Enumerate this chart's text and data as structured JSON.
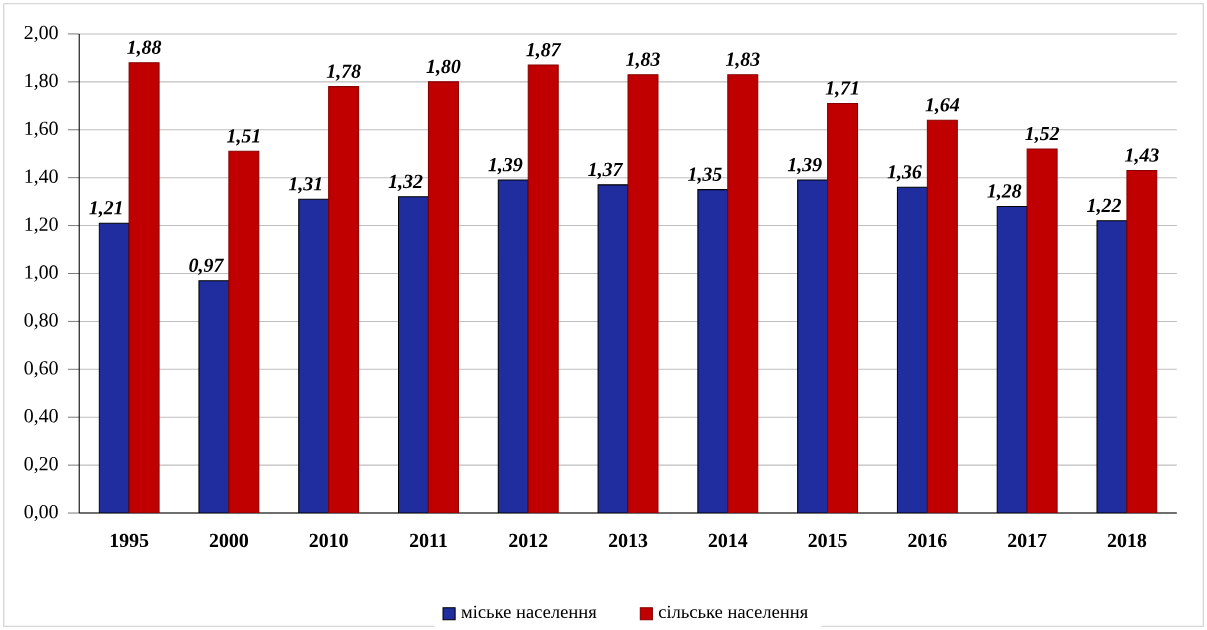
{
  "chart_data": {
    "type": "bar",
    "categories": [
      "1995",
      "2000",
      "2010",
      "2011",
      "2012",
      "2013",
      "2014",
      "2015",
      "2016",
      "2017",
      "2018"
    ],
    "series": [
      {
        "name": "міське населення",
        "color": "#1f2d9e",
        "values": [
          1.21,
          0.97,
          1.31,
          1.32,
          1.39,
          1.37,
          1.35,
          1.39,
          1.36,
          1.28,
          1.22
        ],
        "value_labels": [
          "1,21",
          "0,97",
          "1,31",
          "1,32",
          "1,39",
          "1,37",
          "1,35",
          "1,39",
          "1,36",
          "1,28",
          "1,22"
        ]
      },
      {
        "name": "сільське населення",
        "color": "#c00000",
        "values": [
          1.88,
          1.51,
          1.78,
          1.8,
          1.87,
          1.83,
          1.83,
          1.71,
          1.64,
          1.52,
          1.43
        ],
        "value_labels": [
          "1,88",
          "1,51",
          "1,78",
          "1,80",
          "1,87",
          "1,83",
          "1,83",
          "1,71",
          "1,64",
          "1,52",
          "1,43"
        ]
      }
    ],
    "ylim": [
      0,
      2
    ],
    "yticks": [
      {
        "value": 0,
        "label": "0,00"
      },
      {
        "value": 0.2,
        "label": "0,20"
      },
      {
        "value": 0.4,
        "label": "0,40"
      },
      {
        "value": 0.6,
        "label": "0,60"
      },
      {
        "value": 0.8,
        "label": "0,80"
      },
      {
        "value": 1.0,
        "label": "1,00"
      },
      {
        "value": 1.2,
        "label": "1,20"
      },
      {
        "value": 1.4,
        "label": "1,40"
      },
      {
        "value": 1.6,
        "label": "1,60"
      },
      {
        "value": 1.8,
        "label": "1,80"
      },
      {
        "value": 2.0,
        "label": "2,00"
      }
    ],
    "grid": "y",
    "legend": "bottom"
  }
}
